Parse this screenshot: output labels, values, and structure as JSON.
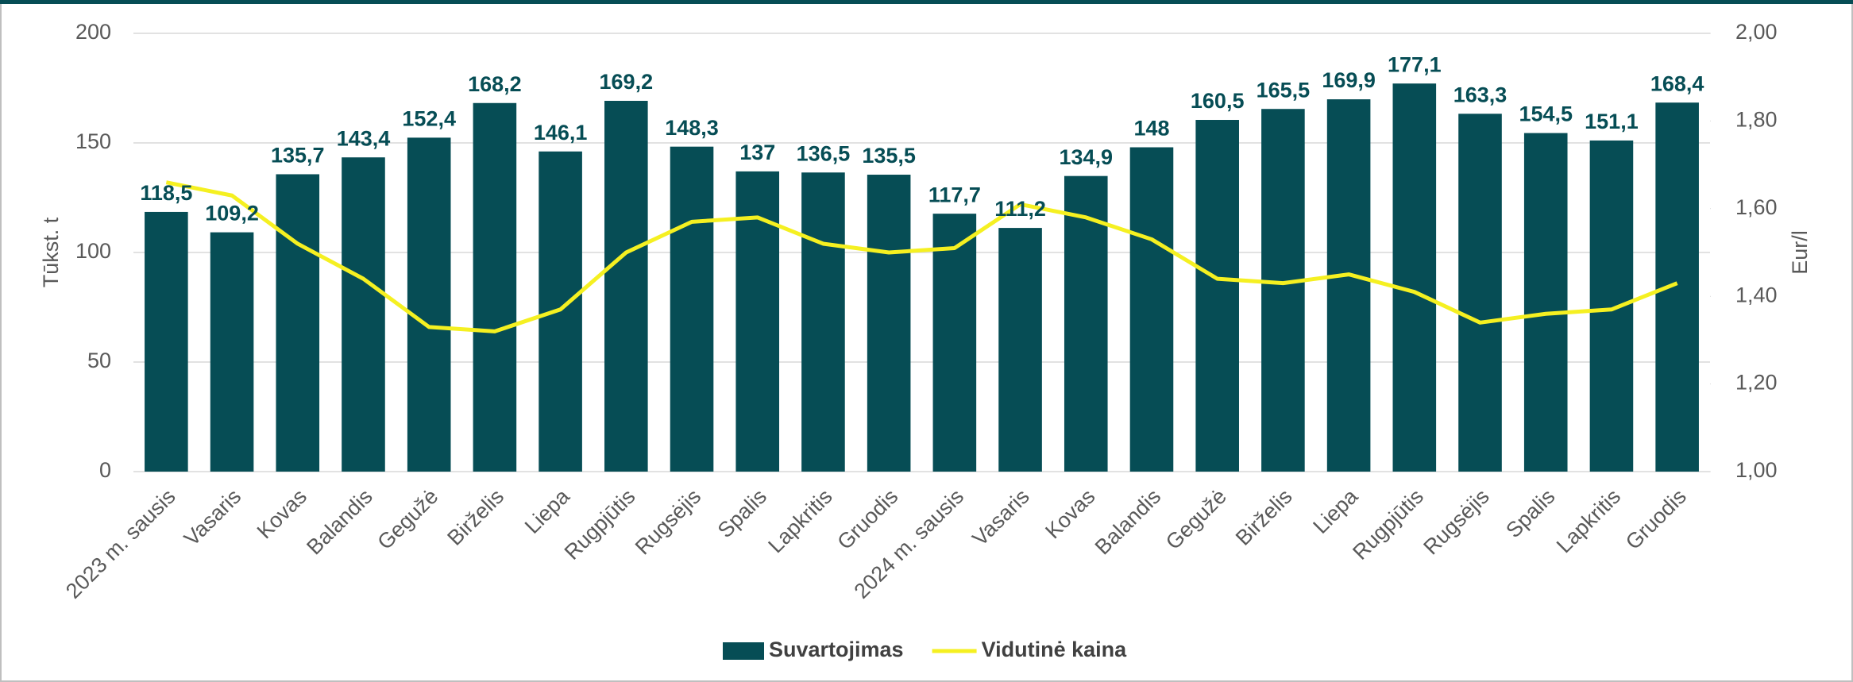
{
  "chart_data": {
    "type": "bar_line",
    "categories": [
      "2023 m. sausis",
      "Vasaris",
      "Kovas",
      "Balandis",
      "Gegužė",
      "Birželis",
      "Liepa",
      "Rugpjūtis",
      "Rugsėjis",
      "Spalis",
      "Lapkritis",
      "Gruodis",
      "2024 m. sausis",
      "Vasaris",
      "Kovas",
      "Balandis",
      "Gegužė",
      "Birželis",
      "Liepa",
      "Rugpjūtis",
      "Rugsėjis",
      "Spalis",
      "Lapkritis",
      "Gruodis"
    ],
    "series": [
      {
        "name": "Suvartojimas",
        "type": "bar",
        "axis": "y",
        "color": "#064d55",
        "values": [
          118.5,
          109.2,
          135.7,
          143.4,
          152.4,
          168.2,
          146.1,
          169.2,
          148.3,
          137,
          136.5,
          135.5,
          117.7,
          111.2,
          134.9,
          148,
          160.5,
          165.5,
          169.9,
          177.1,
          163.3,
          154.5,
          151.1,
          168.4
        ],
        "value_labels": [
          "118,5",
          "109,2",
          "135,7",
          "143,4",
          "152,4",
          "168,2",
          "146,1",
          "169,2",
          "148,3",
          "137",
          "136,5",
          "135,5",
          "117,7",
          "111,2",
          "134,9",
          "148",
          "160,5",
          "165,5",
          "169,9",
          "177,1",
          "163,3",
          "154,5",
          "151,1",
          "168,4"
        ]
      },
      {
        "name": "Vidutinė kaina",
        "type": "line",
        "axis": "y2",
        "color": "#f5f021",
        "values": [
          1.66,
          1.63,
          1.52,
          1.44,
          1.33,
          1.32,
          1.37,
          1.5,
          1.57,
          1.58,
          1.52,
          1.5,
          1.51,
          1.61,
          1.58,
          1.53,
          1.44,
          1.43,
          1.45,
          1.41,
          1.34,
          1.36,
          1.37,
          1.43
        ]
      }
    ],
    "ylabel": "Tūkst. t",
    "y2label": "Eur/l",
    "ylim": [
      0,
      200
    ],
    "yticks": [
      0,
      50,
      100,
      150,
      200
    ],
    "y2lim": [
      1,
      2
    ],
    "y2ticks": [
      {
        "value": 1,
        "label": "1,00"
      },
      {
        "value": 1.2,
        "label": "1,20"
      },
      {
        "value": 1.4,
        "label": "1,40"
      },
      {
        "value": 1.6,
        "label": "1,60"
      },
      {
        "value": 1.8,
        "label": "1,80"
      },
      {
        "value": 2,
        "label": "2,00"
      }
    ],
    "grid": true,
    "legend": "bottom"
  }
}
